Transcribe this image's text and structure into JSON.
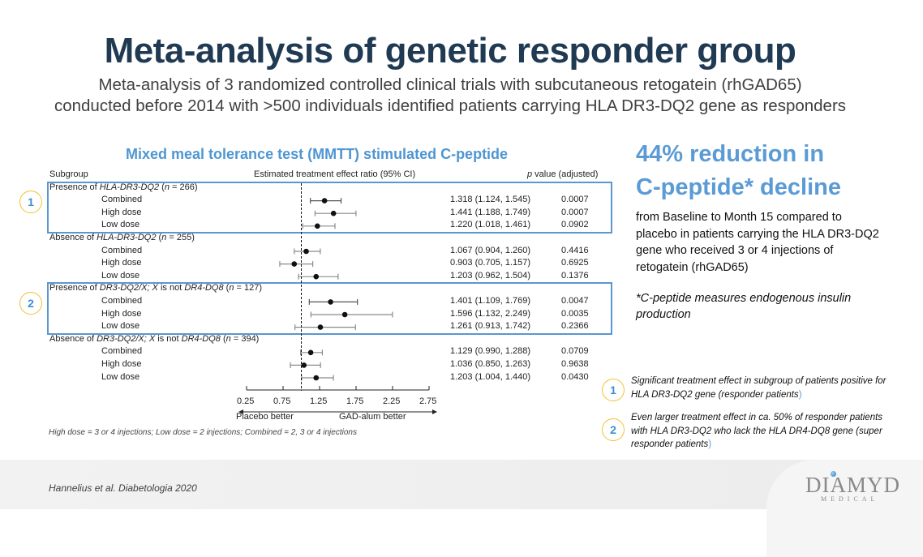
{
  "header": {
    "title": "Meta-analysis of genetic responder group",
    "subtitle_line1": "Meta-analysis of 3 randomized controlled clinical trials with subcutaneous retogatein (rhGAD65)",
    "subtitle_line2": "conducted before 2014 with >500 individuals identified patients carrying HLA DR3-DQ2 gene as responders"
  },
  "chart_data": {
    "type": "forest",
    "title": "Mixed meal tolerance test (MMTT) stimulated C-peptide",
    "column_headers": {
      "subgroup": "Subgroup",
      "estimate": "Estimated treatment effect ratio (95% CI)",
      "pvalue_italic": "p",
      "pvalue": " value (adjusted)"
    },
    "x_ticks": [
      0.25,
      0.75,
      1.25,
      1.75,
      2.25,
      2.75
    ],
    "x_tick_labels": [
      "0.25",
      "0.75",
      "1.25",
      "1.75",
      "2.25",
      "2.75"
    ],
    "xlim": [
      0.25,
      2.75
    ],
    "reference_line": 1.0,
    "left_label": "Placebo better",
    "right_label": "GAD-alum better",
    "groups": [
      {
        "label_prefix": "Presence of ",
        "label_italic": "HLA-DR3-DQ2",
        "label_suffix": " (",
        "n_italic": "n",
        "n_text": " = 266)",
        "highlight": "1",
        "rows": [
          {
            "name": "Combined",
            "est": 1.318,
            "lo": 1.124,
            "hi": 1.545,
            "text": "1.318 (1.124, 1.545)",
            "p": "0.0007"
          },
          {
            "name": "High dose",
            "est": 1.441,
            "lo": 1.188,
            "hi": 1.749,
            "text": "1.441 (1.188, 1.749)",
            "p": "0.0007"
          },
          {
            "name": "Low dose",
            "est": 1.22,
            "lo": 1.018,
            "hi": 1.461,
            "text": "1.220 (1.018, 1.461)",
            "p": "0.0902"
          }
        ]
      },
      {
        "label_prefix": "Absence of ",
        "label_italic": "HLA-DR3-DQ2",
        "label_suffix": " (",
        "n_italic": "n",
        "n_text": " = 255)",
        "highlight": "",
        "rows": [
          {
            "name": "Combined",
            "est": 1.067,
            "lo": 0.904,
            "hi": 1.26,
            "text": "1.067 (0.904, 1.260)",
            "p": "0.4416"
          },
          {
            "name": "High dose",
            "est": 0.903,
            "lo": 0.705,
            "hi": 1.157,
            "text": "0.903 (0.705, 1.157)",
            "p": "0.6925"
          },
          {
            "name": "Low dose",
            "est": 1.203,
            "lo": 0.962,
            "hi": 1.504,
            "text": "1.203 (0.962, 1.504)",
            "p": "0.1376"
          }
        ]
      },
      {
        "label_prefix": "Presence of ",
        "label_italic": "DR3-DQ2/X; X",
        "label_mid": " is not ",
        "label_italic2": "DR4-DQ8",
        "label_suffix": " (",
        "n_italic": "n",
        "n_text": " = 127)",
        "highlight": "2",
        "rows": [
          {
            "name": "Combined",
            "est": 1.401,
            "lo": 1.109,
            "hi": 1.769,
            "text": "1.401 (1.109, 1.769)",
            "p": "0.0047"
          },
          {
            "name": "High dose",
            "est": 1.596,
            "lo": 1.132,
            "hi": 2.249,
            "text": "1.596 (1.132, 2.249)",
            "p": "0.0035"
          },
          {
            "name": "Low dose",
            "est": 1.261,
            "lo": 0.913,
            "hi": 1.742,
            "text": "1.261 (0.913, 1.742)",
            "p": "0.2366"
          }
        ]
      },
      {
        "label_prefix": "Absence of ",
        "label_italic": "DR3-DQ2/X; X",
        "label_mid": " is not ",
        "label_italic2": "DR4-DQ8",
        "label_suffix": " (",
        "n_italic": "n",
        "n_text": " = 394)",
        "highlight": "",
        "rows": [
          {
            "name": "Combined",
            "est": 1.129,
            "lo": 0.99,
            "hi": 1.288,
            "text": "1.129 (0.990, 1.288)",
            "p": "0.0709"
          },
          {
            "name": "High dose",
            "est": 1.036,
            "lo": 0.85,
            "hi": 1.263,
            "text": "1.036 (0.850, 1.263)",
            "p": "0.9638"
          },
          {
            "name": "Low dose",
            "est": 1.203,
            "lo": 1.004,
            "hi": 1.44,
            "text": "1.203 (1.004, 1.440)",
            "p": "0.0430"
          }
        ]
      }
    ],
    "footnote": "High dose = 3 or 4 injections; Low dose = 2 injections; Combined = 2, 3 or 4 injections"
  },
  "highlight_colors": {
    "box": "#5a97d0",
    "badge_ring": "#f2c12e",
    "badge_text": "#3b8fd3",
    "accent": "#5b9bd5",
    "title": "#1f3a52"
  },
  "summary": {
    "headline_line1": "44% reduction in",
    "headline_line2": "C-peptide* decline",
    "body": "from Baseline to Month 15 compared to placebo in patients carrying the HLA DR3-DQ2 gene who received 3 or 4 injections of retogatein (rhGAD65)",
    "note": "*C-peptide measures endogenous insulin production"
  },
  "legend": [
    {
      "badge": "1",
      "text": "Significant treatment effect in subgroup of patients positive for HLA DR3-DQ2 gene (responder patients",
      "close": ")"
    },
    {
      "badge": "2",
      "text": "Even larger treatment effect in ca. 50% of responder patients with HLA DR3-DQ2 who lack the HLA DR4-DQ8 gene (super responder patients",
      "close": ")"
    }
  ],
  "footer": {
    "citation": "Hannelius et al. Diabetologia 2020",
    "logo_main": "DIAMYD",
    "logo_sub": "MEDICAL"
  }
}
